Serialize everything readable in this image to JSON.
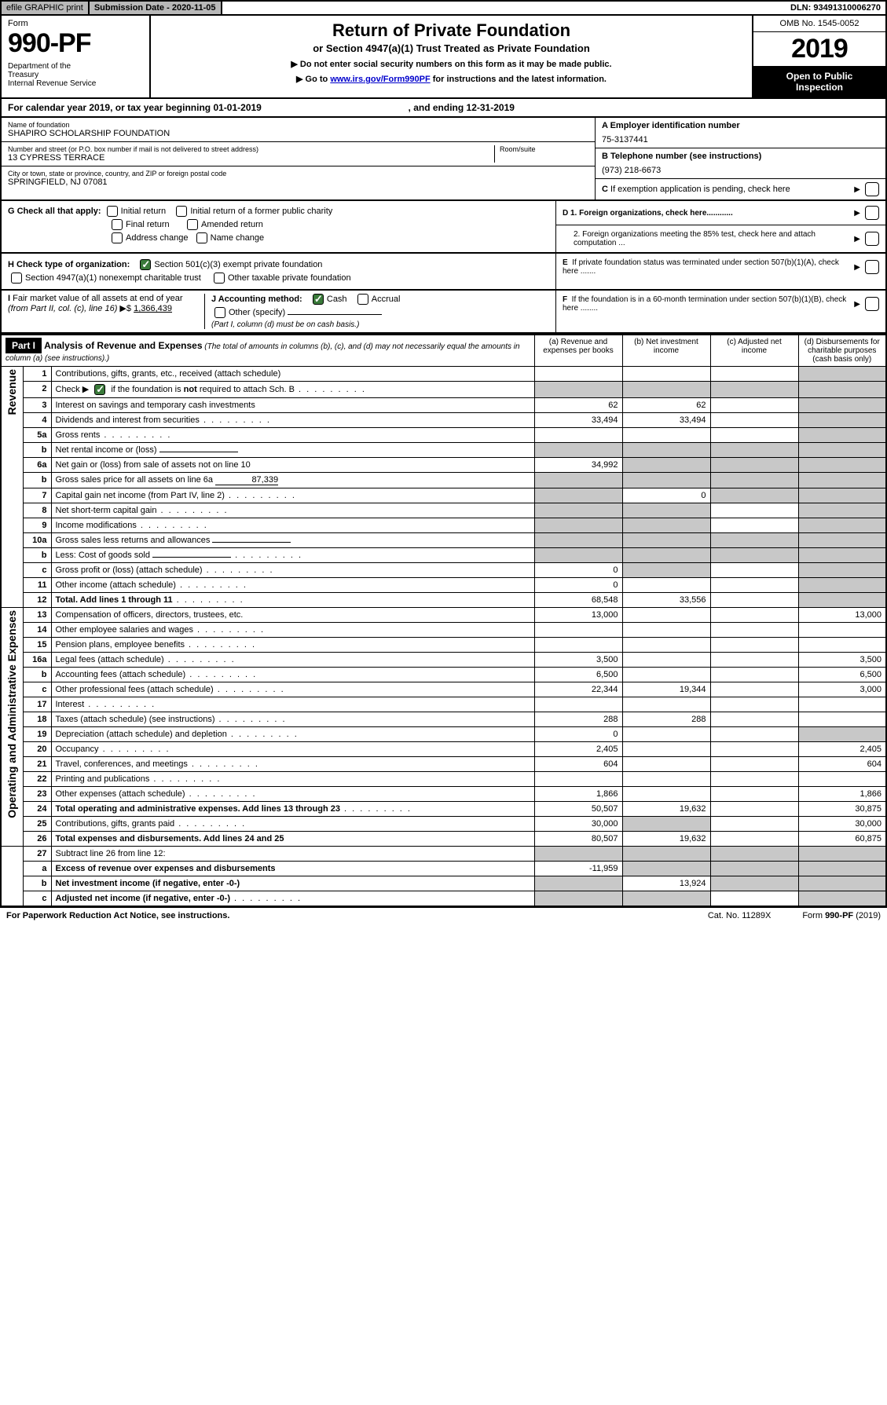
{
  "topbar": {
    "efile": "efile GRAPHIC print",
    "subdate_label": "Submission Date - 2020-11-05",
    "dln": "DLN: 93491310006270"
  },
  "header": {
    "form_label": "Form",
    "form_num": "990-PF",
    "dept": "Department of the Treasury\nInternal Revenue Service",
    "title": "Return of Private Foundation",
    "subtitle": "or Section 4947(a)(1) Trust Treated as Private Foundation",
    "note1": "▶ Do not enter social security numbers on this form as it may be made public.",
    "note2_pre": "▶ Go to ",
    "note2_link": "www.irs.gov/Form990PF",
    "note2_post": " for instructions and the latest information.",
    "omb": "OMB No. 1545-0052",
    "year": "2019",
    "inspect": "Open to Public Inspection"
  },
  "calendar": {
    "pre": "For calendar year 2019, or tax year beginning ",
    "begin": "01-01-2019",
    "mid": " , and ending ",
    "end": "12-31-2019"
  },
  "info": {
    "name_label": "Name of foundation",
    "name": "SHAPIRO SCHOLARSHIP FOUNDATION",
    "addr_label": "Number and street (or P.O. box number if mail is not delivered to street address)",
    "room_label": "Room/suite",
    "addr": "13 CYPRESS TERRACE",
    "city_label": "City or town, state or province, country, and ZIP or foreign postal code",
    "city": "SPRINGFIELD, NJ  07081",
    "a_label": "A Employer identification number",
    "a_val": "75-3137441",
    "b_label": "B Telephone number (see instructions)",
    "b_val": "(973) 218-6673",
    "c_label": "C If exemption application is pending, check here"
  },
  "g": {
    "label": "G Check all that apply:",
    "opts": [
      "Initial return",
      "Initial return of a former public charity",
      "Final return",
      "Amended return",
      "Address change",
      "Name change"
    ]
  },
  "d": {
    "d1": "D 1. Foreign organizations, check here............",
    "d2": "2. Foreign organizations meeting the 85% test, check here and attach computation ...",
    "e": "E  If private foundation status was terminated under section 507(b)(1)(A), check here .......",
    "f": "F  If the foundation is in a 60-month termination under section 507(b)(1)(B), check here ........"
  },
  "h": {
    "label": "H Check type of organization:",
    "o1": "Section 501(c)(3) exempt private foundation",
    "o2": "Section 4947(a)(1) nonexempt charitable trust",
    "o3": "Other taxable private foundation"
  },
  "i": {
    "label": "I Fair market value of all assets at end of year (from Part II, col. (c), line 16) ▶$ ",
    "val": "1,366,439"
  },
  "j": {
    "label": "J Accounting method:",
    "cash": "Cash",
    "accrual": "Accrual",
    "other": "Other (specify)",
    "note": "(Part I, column (d) must be on cash basis.)"
  },
  "part1": {
    "tag": "Part I",
    "title": "Analysis of Revenue and Expenses",
    "title_note": " (The total of amounts in columns (b), (c), and (d) may not necessarily equal the amounts in column (a) (see instructions).)",
    "col_a": "(a) Revenue and expenses per books",
    "col_b": "(b) Net investment income",
    "col_c": "(c) Adjusted net income",
    "col_d": "(d) Disbursements for charitable purposes (cash basis only)"
  },
  "rows_revenue": [
    {
      "n": "1",
      "d": "Contributions, gifts, grants, etc., received (attach schedule)",
      "a": "",
      "b": "",
      "c": "",
      "dcol": "",
      "ga": false,
      "gb": false,
      "gc": false,
      "gd": true
    },
    {
      "n": "2",
      "d": "Check ▶ ☑ if the foundation is not required to attach Sch. B",
      "a": "",
      "b": "",
      "c": "",
      "dcol": "",
      "ga": true,
      "gb": true,
      "gc": true,
      "gd": true,
      "bold_not": true,
      "dots": true
    },
    {
      "n": "3",
      "d": "Interest on savings and temporary cash investments",
      "a": "62",
      "b": "62",
      "c": "",
      "dcol": "",
      "gd": true
    },
    {
      "n": "4",
      "d": "Dividends and interest from securities",
      "a": "33,494",
      "b": "33,494",
      "c": "",
      "dcol": "",
      "dots": true,
      "gd": true
    },
    {
      "n": "5a",
      "d": "Gross rents",
      "a": "",
      "b": "",
      "c": "",
      "dcol": "",
      "dots": true,
      "gd": true
    },
    {
      "n": "b",
      "d": "Net rental income or (loss)",
      "a": "",
      "b": "",
      "c": "",
      "dcol": "",
      "ga": true,
      "gb": true,
      "gc": true,
      "gd": true,
      "inline_blank": true
    },
    {
      "n": "6a",
      "d": "Net gain or (loss) from sale of assets not on line 10",
      "a": "34,992",
      "b": "",
      "c": "",
      "dcol": "",
      "gb": true,
      "gc": true,
      "gd": true
    },
    {
      "n": "b",
      "d": "Gross sales price for all assets on line 6a",
      "a": "",
      "b": "",
      "c": "",
      "dcol": "",
      "ga": true,
      "gb": true,
      "gc": true,
      "gd": true,
      "inline_val": "87,339"
    },
    {
      "n": "7",
      "d": "Capital gain net income (from Part IV, line 2)",
      "a": "",
      "b": "0",
      "c": "",
      "dcol": "",
      "ga": true,
      "gc": true,
      "gd": true,
      "dots": true
    },
    {
      "n": "8",
      "d": "Net short-term capital gain",
      "a": "",
      "b": "",
      "c": "",
      "dcol": "",
      "ga": true,
      "gb": true,
      "gd": true,
      "dots": true
    },
    {
      "n": "9",
      "d": "Income modifications",
      "a": "",
      "b": "",
      "c": "",
      "dcol": "",
      "ga": true,
      "gb": true,
      "gd": true,
      "dots": true
    },
    {
      "n": "10a",
      "d": "Gross sales less returns and allowances",
      "a": "",
      "b": "",
      "c": "",
      "dcol": "",
      "ga": true,
      "gb": true,
      "gc": true,
      "gd": true,
      "inline_blank": true
    },
    {
      "n": "b",
      "d": "Less: Cost of goods sold",
      "a": "",
      "b": "",
      "c": "",
      "dcol": "",
      "ga": true,
      "gb": true,
      "gc": true,
      "gd": true,
      "dots": true,
      "inline_blank": true
    },
    {
      "n": "c",
      "d": "Gross profit or (loss) (attach schedule)",
      "a": "0",
      "b": "",
      "c": "",
      "dcol": "",
      "gb": true,
      "gd": true,
      "dots": true
    },
    {
      "n": "11",
      "d": "Other income (attach schedule)",
      "a": "0",
      "b": "",
      "c": "",
      "dcol": "",
      "gd": true,
      "dots": true
    },
    {
      "n": "12",
      "d": "Total. Add lines 1 through 11",
      "a": "68,548",
      "b": "33,556",
      "c": "",
      "dcol": "",
      "gd": true,
      "bold": true,
      "dots": true
    }
  ],
  "rows_expenses": [
    {
      "n": "13",
      "d": "Compensation of officers, directors, trustees, etc.",
      "a": "13,000",
      "b": "",
      "c": "",
      "dcol": "13,000"
    },
    {
      "n": "14",
      "d": "Other employee salaries and wages",
      "a": "",
      "b": "",
      "c": "",
      "dcol": "",
      "dots": true
    },
    {
      "n": "15",
      "d": "Pension plans, employee benefits",
      "a": "",
      "b": "",
      "c": "",
      "dcol": "",
      "dots": true
    },
    {
      "n": "16a",
      "d": "Legal fees (attach schedule)",
      "a": "3,500",
      "b": "",
      "c": "",
      "dcol": "3,500",
      "dots": true
    },
    {
      "n": "b",
      "d": "Accounting fees (attach schedule)",
      "a": "6,500",
      "b": "",
      "c": "",
      "dcol": "6,500",
      "dots": true
    },
    {
      "n": "c",
      "d": "Other professional fees (attach schedule)",
      "a": "22,344",
      "b": "19,344",
      "c": "",
      "dcol": "3,000",
      "dots": true
    },
    {
      "n": "17",
      "d": "Interest",
      "a": "",
      "b": "",
      "c": "",
      "dcol": "",
      "dots": true
    },
    {
      "n": "18",
      "d": "Taxes (attach schedule) (see instructions)",
      "a": "288",
      "b": "288",
      "c": "",
      "dcol": "",
      "dots": true
    },
    {
      "n": "19",
      "d": "Depreciation (attach schedule) and depletion",
      "a": "0",
      "b": "",
      "c": "",
      "dcol": "",
      "gd": true,
      "dots": true
    },
    {
      "n": "20",
      "d": "Occupancy",
      "a": "2,405",
      "b": "",
      "c": "",
      "dcol": "2,405",
      "dots": true
    },
    {
      "n": "21",
      "d": "Travel, conferences, and meetings",
      "a": "604",
      "b": "",
      "c": "",
      "dcol": "604",
      "dots": true
    },
    {
      "n": "22",
      "d": "Printing and publications",
      "a": "",
      "b": "",
      "c": "",
      "dcol": "",
      "dots": true
    },
    {
      "n": "23",
      "d": "Other expenses (attach schedule)",
      "a": "1,866",
      "b": "",
      "c": "",
      "dcol": "1,866",
      "dots": true
    },
    {
      "n": "24",
      "d": "Total operating and administrative expenses. Add lines 13 through 23",
      "a": "50,507",
      "b": "19,632",
      "c": "",
      "dcol": "30,875",
      "bold": true,
      "dots": true
    },
    {
      "n": "25",
      "d": "Contributions, gifts, grants paid",
      "a": "30,000",
      "b": "",
      "c": "",
      "dcol": "30,000",
      "gb": true,
      "dots": true
    },
    {
      "n": "26",
      "d": "Total expenses and disbursements. Add lines 24 and 25",
      "a": "80,507",
      "b": "19,632",
      "c": "",
      "dcol": "60,875",
      "bold": true
    }
  ],
  "rows_bottom": [
    {
      "n": "27",
      "d": "Subtract line 26 from line 12:",
      "a": "",
      "b": "",
      "c": "",
      "dcol": "",
      "ga": true,
      "gb": true,
      "gc": true,
      "gd": true
    },
    {
      "n": "a",
      "d": "Excess of revenue over expenses and disbursements",
      "a": "-11,959",
      "b": "",
      "c": "",
      "dcol": "",
      "gb": true,
      "gc": true,
      "gd": true,
      "bold": true
    },
    {
      "n": "b",
      "d": "Net investment income (if negative, enter -0-)",
      "a": "",
      "b": "13,924",
      "c": "",
      "dcol": "",
      "ga": true,
      "gc": true,
      "gd": true,
      "bold": true
    },
    {
      "n": "c",
      "d": "Adjusted net income (if negative, enter -0-)",
      "a": "",
      "b": "",
      "c": "",
      "dcol": "",
      "ga": true,
      "gb": true,
      "gd": true,
      "bold": true,
      "dots": true
    }
  ],
  "side": {
    "revenue": "Revenue",
    "expenses": "Operating and Administrative Expenses"
  },
  "footer": {
    "left": "For Paperwork Reduction Act Notice, see instructions.",
    "mid": "Cat. No. 11289X",
    "right": "Form 990-PF (2019)"
  }
}
